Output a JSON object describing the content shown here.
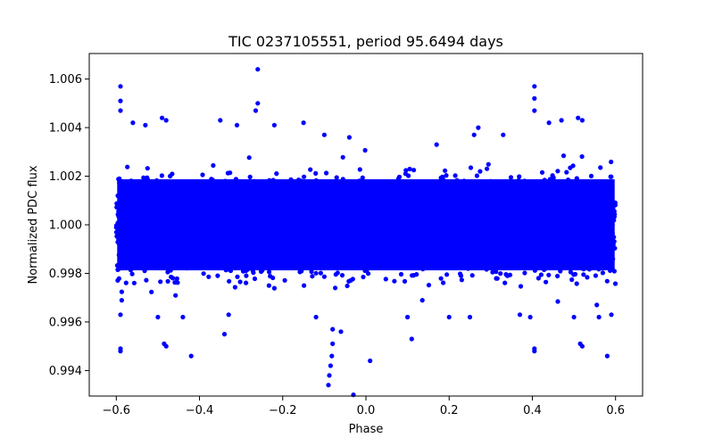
{
  "chart_data": {
    "type": "scatter",
    "title": "TIC 0237105551, period 95.6494 days",
    "xlabel": "Phase",
    "ylabel": "Normalized PDC flux",
    "xlim": [
      -0.665,
      0.665
    ],
    "ylim": [
      0.99295,
      1.00705
    ],
    "xticks": [
      -0.6,
      -0.4,
      -0.2,
      0.0,
      0.2,
      0.4,
      0.6
    ],
    "xtick_labels": [
      "−0.6",
      "−0.4",
      "−0.2",
      "0.0",
      "0.2",
      "0.4",
      "0.6"
    ],
    "yticks": [
      0.994,
      0.996,
      0.998,
      1.0,
      1.002,
      1.004,
      1.006
    ],
    "ytick_labels": [
      "0.994",
      "0.996",
      "0.998",
      "1.000",
      "1.002",
      "1.004",
      "1.006"
    ],
    "marker_color": "#0000ff",
    "band": {
      "x_range": [
        -0.6,
        0.6
      ],
      "center": 1.0,
      "core_range": [
        0.9975,
        1.0025
      ],
      "note": "dense cloud of points, bulk between ~0.9975 and ~1.0025 flux across all phases"
    },
    "outliers": [
      {
        "x": -0.59,
        "y": 1.0057
      },
      {
        "x": -0.59,
        "y": 1.0051
      },
      {
        "x": -0.59,
        "y": 1.0047
      },
      {
        "x": -0.59,
        "y": 0.9949
      },
      {
        "x": -0.59,
        "y": 0.9948
      },
      {
        "x": -0.59,
        "y": 0.9963
      },
      {
        "x": -0.56,
        "y": 1.0042
      },
      {
        "x": -0.53,
        "y": 1.0041
      },
      {
        "x": -0.49,
        "y": 1.0044
      },
      {
        "x": -0.48,
        "y": 1.0043
      },
      {
        "x": -0.485,
        "y": 0.9951
      },
      {
        "x": -0.48,
        "y": 0.995
      },
      {
        "x": -0.5,
        "y": 0.9962
      },
      {
        "x": -0.44,
        "y": 0.9962
      },
      {
        "x": -0.42,
        "y": 0.9946
      },
      {
        "x": -0.35,
        "y": 1.0043
      },
      {
        "x": -0.34,
        "y": 0.9955
      },
      {
        "x": -0.33,
        "y": 0.9963
      },
      {
        "x": -0.31,
        "y": 1.0041
      },
      {
        "x": -0.26,
        "y": 1.0064
      },
      {
        "x": -0.26,
        "y": 1.005
      },
      {
        "x": -0.265,
        "y": 1.0047
      },
      {
        "x": -0.22,
        "y": 1.0041
      },
      {
        "x": -0.15,
        "y": 1.0042
      },
      {
        "x": -0.12,
        "y": 0.9962
      },
      {
        "x": -0.1,
        "y": 1.0037
      },
      {
        "x": -0.08,
        "y": 0.9957
      },
      {
        "x": -0.08,
        "y": 0.9951
      },
      {
        "x": -0.082,
        "y": 0.9946
      },
      {
        "x": -0.085,
        "y": 0.9942
      },
      {
        "x": -0.088,
        "y": 0.9938
      },
      {
        "x": -0.09,
        "y": 0.9934
      },
      {
        "x": -0.06,
        "y": 0.9956
      },
      {
        "x": -0.03,
        "y": 0.993
      },
      {
        "x": 0.01,
        "y": 0.9944
      },
      {
        "x": -0.04,
        "y": 1.0036
      },
      {
        "x": 0.11,
        "y": 0.9953
      },
      {
        "x": 0.1,
        "y": 0.9962
      },
      {
        "x": 0.17,
        "y": 1.0033
      },
      {
        "x": 0.2,
        "y": 0.9962
      },
      {
        "x": 0.25,
        "y": 0.9962
      },
      {
        "x": 0.27,
        "y": 1.004
      },
      {
        "x": 0.26,
        "y": 1.0037
      },
      {
        "x": 0.33,
        "y": 1.0037
      },
      {
        "x": 0.37,
        "y": 0.9963
      },
      {
        "x": 0.405,
        "y": 1.0057
      },
      {
        "x": 0.405,
        "y": 1.0052
      },
      {
        "x": 0.405,
        "y": 1.0047
      },
      {
        "x": 0.405,
        "y": 0.9949
      },
      {
        "x": 0.405,
        "y": 0.9948
      },
      {
        "x": 0.395,
        "y": 0.9962
      },
      {
        "x": 0.44,
        "y": 1.0042
      },
      {
        "x": 0.47,
        "y": 1.0043
      },
      {
        "x": 0.51,
        "y": 1.0044
      },
      {
        "x": 0.52,
        "y": 1.0043
      },
      {
        "x": 0.515,
        "y": 0.9951
      },
      {
        "x": 0.52,
        "y": 0.995
      },
      {
        "x": 0.5,
        "y": 0.9962
      },
      {
        "x": 0.56,
        "y": 0.9962
      },
      {
        "x": 0.58,
        "y": 0.9946
      },
      {
        "x": 0.59,
        "y": 0.9963
      },
      {
        "x": 0.555,
        "y": 0.9967
      }
    ]
  }
}
